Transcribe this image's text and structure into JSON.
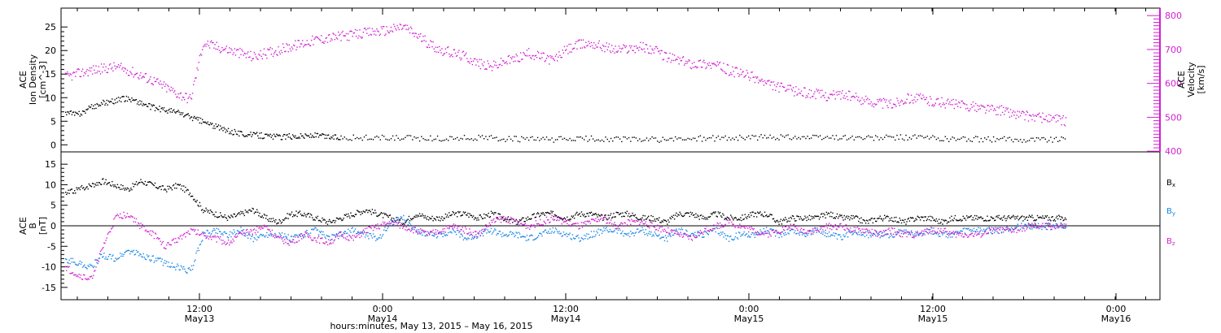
{
  "chart_data": [
    {
      "type": "scatter",
      "panel": "top",
      "ylabel_left": [
        "ACE",
        "Ion Density",
        "[cm^-3]"
      ],
      "ylabel_right": [
        "ACE",
        "Velocity",
        "[km/s]"
      ],
      "y_left_ticks": [
        "0",
        "5",
        "10",
        "15",
        "20",
        "25"
      ],
      "y_right_ticks": [
        "400",
        "500",
        "600",
        "700",
        "800"
      ],
      "ylim_left": [
        -1.5,
        29
      ],
      "ylim_right": [
        398,
        822
      ],
      "series": [
        {
          "name": "Ion Density",
          "axis": "left",
          "color": "#000000",
          "x": [
            0,
            1,
            2,
            3,
            4,
            5,
            6,
            7,
            8,
            9,
            10,
            11,
            12,
            13,
            14,
            15,
            16,
            17,
            18,
            19,
            20,
            21,
            22,
            24,
            26,
            28,
            30,
            32,
            34,
            36,
            38,
            40,
            42,
            44,
            46,
            48,
            50,
            52,
            54,
            56,
            58,
            60,
            62,
            64,
            66,
            68,
            70,
            72,
            74,
            76,
            78,
            80
          ],
          "values": [
            7,
            6.5,
            8,
            9,
            9.5,
            10,
            9,
            8,
            7.5,
            7,
            6,
            5,
            4,
            3,
            2.5,
            2.2,
            2,
            1.8,
            1.9,
            2,
            2.1,
            1.8,
            1.7,
            1.6,
            1.5,
            1.5,
            1.4,
            1.6,
            1.5,
            1.3,
            1.2,
            1.3,
            1.4,
            1.3,
            1.2,
            1.2,
            1.4,
            1.5,
            1.6,
            1.7,
            1.8,
            1.6,
            1.7,
            1.5,
            1.6,
            1.7,
            1.4,
            1.3,
            1.3,
            1.2,
            1.3,
            1.2
          ]
        },
        {
          "name": "Velocity",
          "axis": "right",
          "color": "#d21fd2",
          "x": [
            0,
            1,
            2,
            3,
            4,
            5,
            6,
            7,
            8,
            9,
            10,
            11,
            12,
            13,
            14,
            15,
            16,
            17,
            18,
            19,
            20,
            21,
            22,
            23,
            24,
            25,
            26,
            27,
            28,
            29,
            30,
            31,
            32,
            33,
            34,
            35,
            36,
            37,
            38,
            39,
            40,
            41,
            42,
            43,
            44,
            45,
            46,
            47,
            48,
            49,
            50,
            51,
            52,
            53,
            54,
            55,
            56,
            57,
            58,
            59,
            60,
            61,
            62,
            63,
            64,
            65,
            66,
            67,
            68,
            69,
            70,
            71,
            72,
            73,
            74,
            75,
            76,
            77,
            78,
            79,
            80
          ],
          "values": [
            620,
            630,
            640,
            645,
            650,
            640,
            625,
            610,
            590,
            570,
            555,
            720,
            710,
            700,
            690,
            680,
            690,
            700,
            710,
            720,
            730,
            735,
            740,
            745,
            750,
            755,
            760,
            770,
            745,
            720,
            700,
            690,
            680,
            660,
            650,
            665,
            675,
            690,
            680,
            670,
            700,
            715,
            720,
            710,
            700,
            705,
            710,
            700,
            680,
            670,
            660,
            660,
            655,
            640,
            630,
            620,
            600,
            590,
            580,
            575,
            570,
            565,
            570,
            560,
            550,
            545,
            540,
            555,
            560,
            550,
            545,
            540,
            535,
            530,
            525,
            520,
            510,
            505,
            500,
            495,
            490
          ]
        }
      ]
    },
    {
      "type": "scatter",
      "panel": "bottom",
      "ylabel": [
        "ACE",
        "B",
        "[nT]"
      ],
      "y_ticks": [
        "-15",
        "-10",
        "-5",
        "0",
        "5",
        "10",
        "15"
      ],
      "ylim": [
        -18,
        18
      ],
      "xlabel": "hours:minutes, May 13, 2015 – May 16, 2015",
      "x_ticks": [
        {
          "time": "12:00",
          "date": "May13"
        },
        {
          "time": "0:00",
          "date": "May14"
        },
        {
          "time": "12:00",
          "date": "May14"
        },
        {
          "time": "0:00",
          "date": "May15"
        },
        {
          "time": "12:00",
          "date": "May15"
        },
        {
          "time": "0:00",
          "date": "May16"
        }
      ],
      "series": [
        {
          "name": "Bx",
          "color": "#000000",
          "x": [
            0,
            1,
            2,
            3,
            4,
            5,
            6,
            7,
            8,
            9,
            10,
            11,
            12,
            13,
            14,
            15,
            16,
            17,
            18,
            19,
            20,
            21,
            22,
            23,
            24,
            25,
            26,
            27,
            28,
            29,
            30,
            31,
            32,
            33,
            34,
            35,
            36,
            37,
            38,
            39,
            40,
            41,
            42,
            43,
            44,
            45,
            46,
            47,
            48,
            49,
            50,
            51,
            52,
            53,
            54,
            55,
            56,
            57,
            58,
            59,
            60,
            61,
            62,
            63,
            64,
            65,
            66,
            67,
            68,
            69,
            70,
            71,
            72,
            73,
            74,
            75,
            76,
            77,
            78,
            79,
            80
          ],
          "values": [
            8,
            9,
            10,
            11,
            10,
            9,
            11,
            10,
            9,
            10,
            8,
            4,
            3,
            2,
            3,
            4,
            2,
            1,
            3,
            3,
            2,
            1,
            2,
            3,
            4,
            3,
            2,
            1,
            3,
            2,
            2,
            3,
            3,
            2,
            3,
            2,
            1,
            2,
            3,
            3,
            2,
            3,
            3,
            2,
            3,
            3,
            2,
            2,
            1,
            3,
            3,
            2,
            3,
            2,
            2,
            3,
            3,
            1,
            2,
            2,
            2,
            3,
            2,
            2,
            1,
            2,
            2,
            1,
            2,
            2,
            1,
            2,
            2,
            2,
            2,
            2,
            2,
            2,
            2,
            2,
            2
          ]
        },
        {
          "name": "By",
          "color": "#1a86e6",
          "x": [
            0,
            1,
            2,
            3,
            4,
            5,
            6,
            7,
            8,
            9,
            10,
            11,
            12,
            13,
            14,
            15,
            16,
            17,
            18,
            19,
            20,
            21,
            22,
            23,
            24,
            25,
            26,
            27,
            28,
            29,
            30,
            31,
            32,
            33,
            34,
            35,
            36,
            37,
            38,
            39,
            40,
            41,
            42,
            43,
            44,
            45,
            46,
            47,
            48,
            49,
            50,
            51,
            52,
            53,
            54,
            55,
            56,
            57,
            58,
            59,
            60,
            61,
            62,
            63,
            64,
            65,
            66,
            67,
            68,
            69,
            70,
            71,
            72,
            73,
            74,
            75,
            76,
            77,
            78,
            79,
            80
          ],
          "values": [
            -8,
            -9,
            -10,
            -7,
            -8,
            -6,
            -7,
            -8,
            -9,
            -10,
            -11,
            -2,
            -1,
            -2,
            -1,
            -3,
            -2,
            -2,
            -3,
            -2,
            -1,
            -3,
            -2,
            -1,
            -2,
            -3,
            1,
            2,
            -1,
            -2,
            -2,
            -1,
            -3,
            -2,
            -1,
            -2,
            -2,
            -3,
            -2,
            -1,
            -2,
            -3,
            -2,
            -1,
            -1,
            -2,
            -1,
            -2,
            -3,
            -1,
            -2,
            -2,
            -1,
            -3,
            -2,
            -2,
            -1,
            -2,
            -1,
            -2,
            -1,
            -2,
            -3,
            -1,
            -2,
            -2,
            -2,
            -1,
            -2,
            -1,
            -2,
            -2,
            -1,
            -1,
            -1,
            -1,
            0,
            0,
            0,
            0,
            0
          ]
        },
        {
          "name": "Bz",
          "color": "#d21fd2",
          "x": [
            0,
            1,
            2,
            3,
            4,
            5,
            6,
            7,
            8,
            9,
            10,
            11,
            12,
            13,
            14,
            15,
            16,
            17,
            18,
            19,
            20,
            21,
            22,
            23,
            24,
            25,
            26,
            27,
            28,
            29,
            30,
            31,
            32,
            33,
            34,
            35,
            36,
            37,
            38,
            39,
            40,
            41,
            42,
            43,
            44,
            45,
            46,
            47,
            48,
            49,
            50,
            51,
            52,
            53,
            54,
            55,
            56,
            57,
            58,
            59,
            60,
            61,
            62,
            63,
            64,
            65,
            66,
            67,
            68,
            69,
            70,
            71,
            72,
            73,
            74,
            75,
            76,
            77,
            78,
            79,
            80
          ],
          "values": [
            -10,
            -12,
            -13,
            -5,
            2,
            3,
            0,
            -2,
            -5,
            -3,
            -1,
            -2,
            -3,
            -4,
            -2,
            -1,
            0,
            -3,
            -4,
            -2,
            -3,
            -4,
            -2,
            -3,
            -1,
            0,
            1,
            0,
            -1,
            -2,
            -1,
            0,
            -1,
            -2,
            1,
            2,
            1,
            0,
            1,
            2,
            1,
            0,
            1,
            2,
            0,
            1,
            1,
            0,
            -1,
            -2,
            -3,
            -1,
            0,
            1,
            0,
            -1,
            -2,
            -1,
            0,
            -1,
            -1,
            0,
            0,
            -1,
            -1,
            -2,
            -1,
            -2,
            -2,
            -1,
            -1,
            -2,
            -2,
            -2,
            -1,
            -1,
            -1,
            0,
            0,
            0,
            0
          ]
        }
      ],
      "legend": [
        {
          "label": "B",
          "sub": "x",
          "color": "#000000"
        },
        {
          "label": "B",
          "sub": "y",
          "color": "#1a86e6"
        },
        {
          "label": "B",
          "sub": "z",
          "color": "#d21fd2"
        }
      ]
    }
  ]
}
